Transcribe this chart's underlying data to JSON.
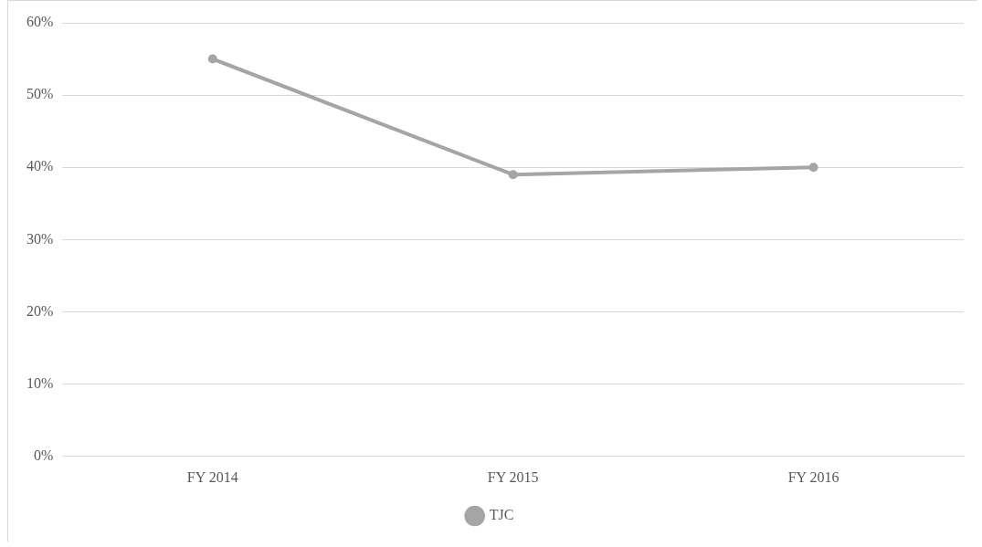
{
  "chart_data": {
    "type": "line",
    "categories": [
      "FY 2014",
      "FY 2015",
      "FY 2016"
    ],
    "series": [
      {
        "name": "TJC",
        "color": "#a5a5a5",
        "values": [
          55,
          39,
          40
        ]
      }
    ],
    "ylim": [
      0,
      60
    ],
    "yticks": [
      {
        "value": 0,
        "label": "0%"
      },
      {
        "value": 10,
        "label": "10%"
      },
      {
        "value": 20,
        "label": "20%"
      },
      {
        "value": 30,
        "label": "30%"
      },
      {
        "value": 40,
        "label": "40%"
      },
      {
        "value": 50,
        "label": "50%"
      },
      {
        "value": 60,
        "label": "60%"
      }
    ],
    "grid": "y",
    "legend": "bottom",
    "marker": "circle",
    "line_style": "solid"
  }
}
